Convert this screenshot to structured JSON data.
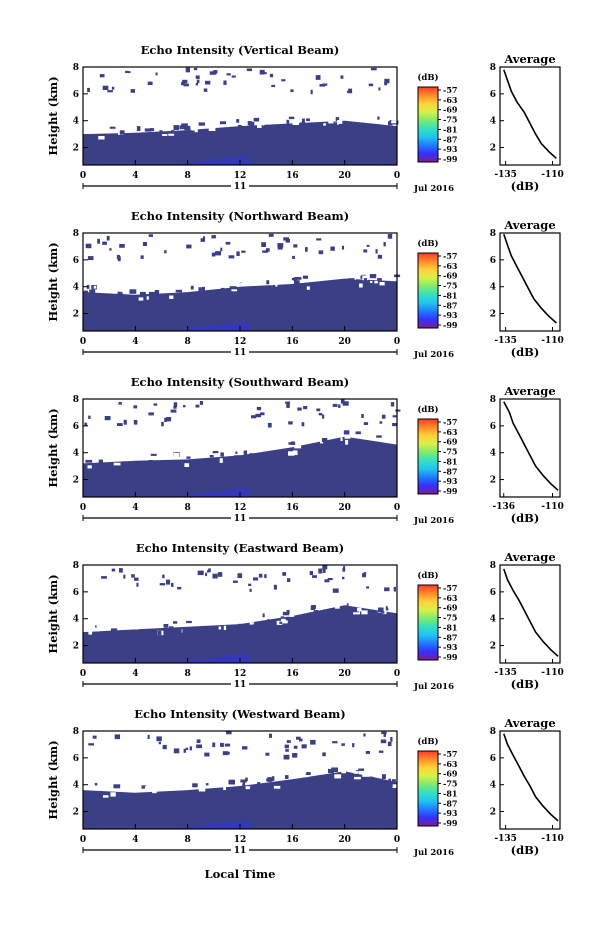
{
  "figure": {
    "xlabel": "Local Time",
    "date_label": "Jul 2016",
    "day_label": "11",
    "ylabel": "Height (km)",
    "cbar_unit": "(dB)",
    "avg_title": "Average",
    "avg_xlabel": "(dB)",
    "colors": {
      "echo_fill": "#3b3f86",
      "echo_low": "#3437b8",
      "background": "#ffffff"
    },
    "colormap": [
      "#7f1d8e",
      "#3430ff",
      "#1f7bff",
      "#22c3f0",
      "#33e0c0",
      "#7fea6e",
      "#d8f04a",
      "#ffd23a",
      "#ff8a2a",
      "#ff3a2a"
    ]
  },
  "chart_data": [
    {
      "type": "heatmap",
      "title": "Echo Intensity (Vertical Beam)",
      "x_ticks": [
        "0",
        "4",
        "8",
        "12",
        "16",
        "20",
        "0"
      ],
      "xlim": [
        0,
        24
      ],
      "y_ticks": [
        "2",
        "4",
        "6",
        "8"
      ],
      "ylim": [
        0.7,
        8
      ],
      "cbar_ticks": [
        "-57",
        "-63",
        "-69",
        "-75",
        "-81",
        "-87",
        "-93",
        "-99"
      ],
      "echo_top_km": [
        [
          0,
          3.0
        ],
        [
          4,
          3.1
        ],
        [
          8,
          3.3
        ],
        [
          12,
          3.6
        ],
        [
          16,
          3.8
        ],
        [
          20,
          4.0
        ],
        [
          24,
          3.6
        ]
      ],
      "average": {
        "x_ticks": [
          "-135",
          "-110"
        ],
        "xlim": [
          -138,
          -106
        ],
        "y_ticks": [
          "2",
          "4",
          "6",
          "8"
        ],
        "profile": [
          [
            -136,
            7.8
          ],
          [
            -134,
            7.0
          ],
          [
            -132,
            6.2
          ],
          [
            -129,
            5.4
          ],
          [
            -125,
            4.6
          ],
          [
            -122,
            3.8
          ],
          [
            -119,
            3.0
          ],
          [
            -116,
            2.3
          ],
          [
            -112,
            1.7
          ],
          [
            -108,
            1.2
          ]
        ]
      }
    },
    {
      "type": "heatmap",
      "title": "Echo Intensity (Northward Beam)",
      "x_ticks": [
        "0",
        "4",
        "8",
        "12",
        "16",
        "20",
        "0"
      ],
      "xlim": [
        0,
        24
      ],
      "y_ticks": [
        "2",
        "4",
        "6",
        "8"
      ],
      "ylim": [
        0.7,
        8
      ],
      "cbar_ticks": [
        "-57",
        "-63",
        "-69",
        "-75",
        "-81",
        "-87",
        "-93",
        "-99"
      ],
      "echo_top_km": [
        [
          0,
          3.6
        ],
        [
          4,
          3.4
        ],
        [
          8,
          3.6
        ],
        [
          12,
          4.0
        ],
        [
          16,
          4.2
        ],
        [
          20,
          4.6
        ],
        [
          24,
          4.4
        ]
      ],
      "average": {
        "x_ticks": [
          "-135",
          "-110"
        ],
        "xlim": [
          -138,
          -106
        ],
        "y_ticks": [
          "2",
          "4",
          "6",
          "8"
        ],
        "profile": [
          [
            -136,
            7.9
          ],
          [
            -134,
            7.1
          ],
          [
            -132,
            6.3
          ],
          [
            -129,
            5.5
          ],
          [
            -126,
            4.7
          ],
          [
            -123,
            3.9
          ],
          [
            -120,
            3.1
          ],
          [
            -116,
            2.4
          ],
          [
            -112,
            1.8
          ],
          [
            -108,
            1.3
          ]
        ]
      }
    },
    {
      "type": "heatmap",
      "title": "Echo Intensity (Southward Beam)",
      "x_ticks": [
        "0",
        "4",
        "8",
        "12",
        "16",
        "20",
        "0"
      ],
      "xlim": [
        0,
        24
      ],
      "y_ticks": [
        "2",
        "4",
        "6",
        "8"
      ],
      "ylim": [
        0.7,
        8
      ],
      "cbar_ticks": [
        "-57",
        "-63",
        "-69",
        "-75",
        "-81",
        "-87",
        "-93",
        "-99"
      ],
      "echo_top_km": [
        [
          0,
          3.2
        ],
        [
          4,
          3.4
        ],
        [
          8,
          3.5
        ],
        [
          12,
          3.8
        ],
        [
          16,
          4.4
        ],
        [
          20,
          5.2
        ],
        [
          24,
          4.6
        ]
      ],
      "average": {
        "x_ticks": [
          "-136",
          "-110"
        ],
        "xlim": [
          -138,
          -106
        ],
        "y_ticks": [
          "2",
          "4",
          "6",
          "8"
        ],
        "profile": [
          [
            -136,
            7.8
          ],
          [
            -133,
            7.0
          ],
          [
            -131,
            6.2
          ],
          [
            -128,
            5.4
          ],
          [
            -125,
            4.6
          ],
          [
            -122,
            3.8
          ],
          [
            -119,
            3.0
          ],
          [
            -115,
            2.3
          ],
          [
            -111,
            1.7
          ],
          [
            -107,
            1.2
          ]
        ]
      }
    },
    {
      "type": "heatmap",
      "title": "Echo Intensity (Eastward Beam)",
      "x_ticks": [
        "0",
        "4",
        "8",
        "12",
        "16",
        "20",
        "0"
      ],
      "xlim": [
        0,
        24
      ],
      "y_ticks": [
        "2",
        "4",
        "6",
        "8"
      ],
      "ylim": [
        0.7,
        8
      ],
      "cbar_ticks": [
        "-57",
        "-63",
        "-69",
        "-75",
        "-81",
        "-87",
        "-93",
        "-99"
      ],
      "echo_top_km": [
        [
          0,
          3.0
        ],
        [
          4,
          3.2
        ],
        [
          8,
          3.4
        ],
        [
          12,
          3.6
        ],
        [
          16,
          4.2
        ],
        [
          20,
          5.0
        ],
        [
          24,
          4.4
        ]
      ],
      "average": {
        "x_ticks": [
          "-135",
          "-110"
        ],
        "xlim": [
          -138,
          -106
        ],
        "y_ticks": [
          "2",
          "4",
          "6",
          "8"
        ],
        "profile": [
          [
            -136,
            7.7
          ],
          [
            -134,
            6.9
          ],
          [
            -131,
            6.1
          ],
          [
            -128,
            5.4
          ],
          [
            -125,
            4.6
          ],
          [
            -122,
            3.8
          ],
          [
            -119,
            3.0
          ],
          [
            -115,
            2.3
          ],
          [
            -111,
            1.7
          ],
          [
            -107,
            1.2
          ]
        ]
      }
    },
    {
      "type": "heatmap",
      "title": "Echo Intensity (Westward Beam)",
      "x_ticks": [
        "0",
        "4",
        "8",
        "12",
        "16",
        "20",
        "0"
      ],
      "xlim": [
        0,
        24
      ],
      "y_ticks": [
        "2",
        "4",
        "6",
        "8"
      ],
      "ylim": [
        0.7,
        8
      ],
      "cbar_ticks": [
        "-57",
        "-63",
        "-69",
        "-75",
        "-81",
        "-87",
        "-93",
        "-99"
      ],
      "echo_top_km": [
        [
          0,
          3.6
        ],
        [
          4,
          3.4
        ],
        [
          8,
          3.6
        ],
        [
          12,
          3.9
        ],
        [
          16,
          4.4
        ],
        [
          20,
          5.0
        ],
        [
          24,
          4.2
        ]
      ],
      "average": {
        "x_ticks": [
          "-135",
          "-110"
        ],
        "xlim": [
          -138,
          -106
        ],
        "y_ticks": [
          "2",
          "4",
          "6",
          "8"
        ],
        "profile": [
          [
            -136,
            7.8
          ],
          [
            -134,
            7.0
          ],
          [
            -131,
            6.2
          ],
          [
            -128,
            5.4
          ],
          [
            -125,
            4.6
          ],
          [
            -122,
            3.9
          ],
          [
            -119,
            3.1
          ],
          [
            -115,
            2.4
          ],
          [
            -111,
            1.8
          ],
          [
            -107,
            1.3
          ]
        ]
      }
    }
  ]
}
